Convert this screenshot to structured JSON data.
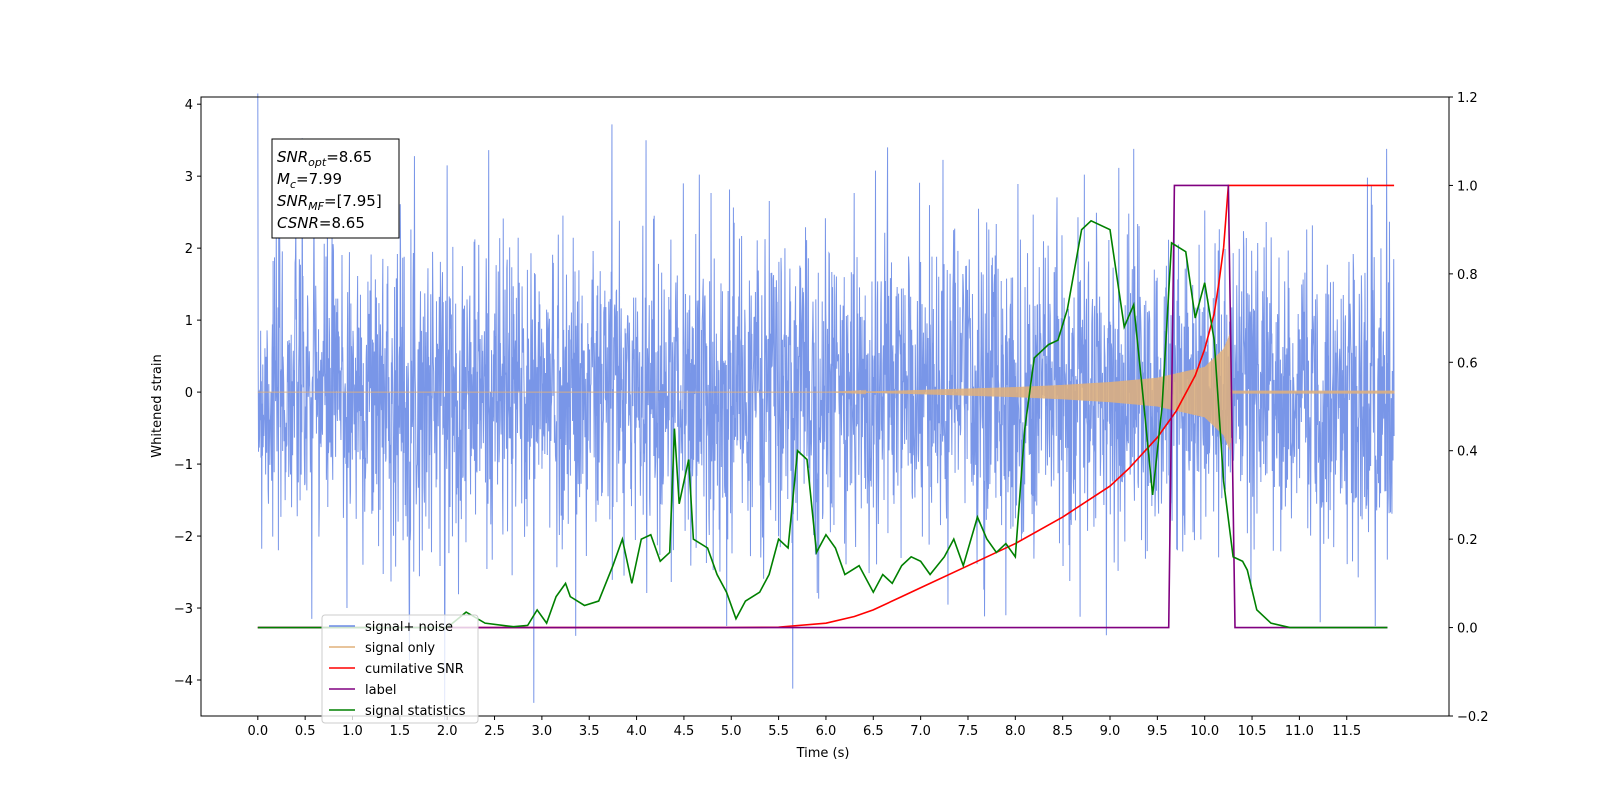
{
  "chart_data": {
    "type": "line",
    "xlabel": "Time (s)",
    "ylabel_left": "Whitened strain",
    "ylabel_right": "",
    "xlim": [
      -0.6,
      12.58
    ],
    "ylim_left": [
      -4.5,
      4.1
    ],
    "ylim_right": [
      -0.2,
      1.2
    ],
    "x_ticks": [
      0.0,
      0.5,
      1.0,
      1.5,
      2.0,
      2.5,
      3.0,
      3.5,
      4.0,
      4.5,
      5.0,
      5.5,
      6.0,
      6.5,
      7.0,
      7.5,
      8.0,
      8.5,
      9.0,
      9.5,
      10.0,
      10.5,
      11.0,
      11.5
    ],
    "x_tick_labels": [
      "0.0",
      "0.5",
      "1.0",
      "1.5",
      "2.0",
      "2.5",
      "3.0",
      "3.5",
      "4.0",
      "4.5",
      "5.0",
      "5.5",
      "6.0",
      "6.5",
      "7.0",
      "7.5",
      "8.0",
      "8.5",
      "9.0",
      "9.5",
      "10.0",
      "10.5",
      "11.0",
      "11.5"
    ],
    "y_left_ticks": [
      4,
      3,
      2,
      1,
      0,
      -1,
      -2,
      -3,
      -4
    ],
    "y_left_tick_labels": [
      "4",
      "3",
      "2",
      "1",
      "0",
      "−1",
      "−2",
      "−3",
      "−4"
    ],
    "y_right_ticks": [
      1.2,
      1.0,
      0.8,
      0.6,
      0.4,
      0.2,
      0.0,
      -0.2
    ],
    "y_right_tick_labels": [
      "1.2",
      "1.0",
      "0.8",
      "0.6",
      "0.4",
      "0.2",
      "0.0",
      "−0.2"
    ],
    "grid": false,
    "legend_position": "lower-left",
    "annotation": {
      "lines": [
        {
          "sym": "SNR",
          "sub": "opt",
          "rest": "=8.65"
        },
        {
          "sym": "M",
          "sub": "c",
          "rest": "=7.99"
        },
        {
          "sym": "SNR",
          "sub": "MF",
          "rest": "=[7.95]"
        },
        {
          "sym": "CSNR",
          "sub": "",
          "rest": "=8.65"
        }
      ]
    },
    "series": [
      {
        "name": "signal+ noise",
        "axis": "left",
        "color": "#6a8be6",
        "kind": "noise",
        "x_range": [
          0.0,
          12.0
        ],
        "envelope_typical": 1.3,
        "notable_peaks": [
          {
            "x": 3.74,
            "y": 3.72
          },
          {
            "x": 4.1,
            "y": 3.5
          },
          {
            "x": 2.0,
            "y": 3.15
          },
          {
            "x": 6.65,
            "y": 3.4
          },
          {
            "x": 9.25,
            "y": 3.38
          },
          {
            "x": 11.92,
            "y": 3.38
          },
          {
            "x": 5.65,
            "y": -4.12
          },
          {
            "x": 0.57,
            "y": -3.15
          },
          {
            "x": 0.94,
            "y": -3.0
          },
          {
            "x": 4.95,
            "y": -3.25
          },
          {
            "x": 7.9,
            "y": -3.1
          },
          {
            "x": 11.8,
            "y": -3.25
          }
        ]
      },
      {
        "name": "signal only",
        "axis": "left",
        "color": "#e0b07a",
        "kind": "chirp",
        "x_range": [
          0.0,
          12.0
        ],
        "amplitude_points": [
          [
            0.0,
            0.0
          ],
          [
            6.0,
            0.0
          ],
          [
            6.5,
            0.01
          ],
          [
            7.0,
            0.03
          ],
          [
            7.5,
            0.05
          ],
          [
            8.0,
            0.07
          ],
          [
            8.5,
            0.1
          ],
          [
            9.0,
            0.14
          ],
          [
            9.5,
            0.2
          ],
          [
            10.0,
            0.35
          ],
          [
            10.2,
            0.6
          ],
          [
            10.27,
            0.82
          ],
          [
            10.29,
            0.02
          ],
          [
            12.0,
            0.02
          ]
        ]
      },
      {
        "name": "cumilative SNR",
        "axis": "right",
        "color": "#ff0000",
        "points": [
          [
            0.0,
            0.0
          ],
          [
            5.0,
            0.0
          ],
          [
            5.5,
            0.001
          ],
          [
            6.0,
            0.01
          ],
          [
            6.3,
            0.025
          ],
          [
            6.5,
            0.04
          ],
          [
            6.8,
            0.07
          ],
          [
            7.0,
            0.09
          ],
          [
            7.5,
            0.14
          ],
          [
            8.0,
            0.19
          ],
          [
            8.5,
            0.25
          ],
          [
            9.0,
            0.32
          ],
          [
            9.2,
            0.36
          ],
          [
            9.5,
            0.43
          ],
          [
            9.7,
            0.49
          ],
          [
            9.9,
            0.57
          ],
          [
            10.0,
            0.63
          ],
          [
            10.1,
            0.71
          ],
          [
            10.15,
            0.78
          ],
          [
            10.2,
            0.86
          ],
          [
            10.25,
            1.0
          ],
          [
            12.0,
            1.0
          ]
        ]
      },
      {
        "name": "label",
        "axis": "right",
        "color": "#800080",
        "points": [
          [
            0.0,
            0.0
          ],
          [
            9.62,
            0.0
          ],
          [
            9.68,
            1.0
          ],
          [
            10.25,
            1.0
          ],
          [
            10.32,
            0.0
          ],
          [
            11.93,
            0.0
          ]
        ]
      },
      {
        "name": "signal statistics",
        "axis": "right",
        "color": "#008000",
        "points": [
          [
            0.0,
            0.0
          ],
          [
            2.0,
            0.0
          ],
          [
            2.2,
            0.035
          ],
          [
            2.4,
            0.01
          ],
          [
            2.7,
            0.002
          ],
          [
            2.85,
            0.005
          ],
          [
            2.95,
            0.04
          ],
          [
            3.05,
            0.01
          ],
          [
            3.15,
            0.07
          ],
          [
            3.25,
            0.1
          ],
          [
            3.3,
            0.07
          ],
          [
            3.45,
            0.05
          ],
          [
            3.6,
            0.06
          ],
          [
            3.75,
            0.14
          ],
          [
            3.85,
            0.2
          ],
          [
            3.95,
            0.1
          ],
          [
            4.05,
            0.2
          ],
          [
            4.15,
            0.21
          ],
          [
            4.25,
            0.15
          ],
          [
            4.35,
            0.17
          ],
          [
            4.4,
            0.45
          ],
          [
            4.45,
            0.28
          ],
          [
            4.55,
            0.38
          ],
          [
            4.6,
            0.2
          ],
          [
            4.75,
            0.18
          ],
          [
            4.85,
            0.12
          ],
          [
            4.95,
            0.08
          ],
          [
            5.05,
            0.02
          ],
          [
            5.15,
            0.06
          ],
          [
            5.3,
            0.08
          ],
          [
            5.4,
            0.12
          ],
          [
            5.5,
            0.2
          ],
          [
            5.6,
            0.18
          ],
          [
            5.7,
            0.4
          ],
          [
            5.8,
            0.38
          ],
          [
            5.9,
            0.17
          ],
          [
            6.0,
            0.21
          ],
          [
            6.1,
            0.18
          ],
          [
            6.2,
            0.12
          ],
          [
            6.35,
            0.14
          ],
          [
            6.5,
            0.08
          ],
          [
            6.6,
            0.12
          ],
          [
            6.7,
            0.1
          ],
          [
            6.8,
            0.14
          ],
          [
            6.9,
            0.16
          ],
          [
            7.0,
            0.15
          ],
          [
            7.1,
            0.12
          ],
          [
            7.25,
            0.16
          ],
          [
            7.35,
            0.2
          ],
          [
            7.45,
            0.14
          ],
          [
            7.6,
            0.25
          ],
          [
            7.7,
            0.2
          ],
          [
            7.8,
            0.17
          ],
          [
            7.9,
            0.19
          ],
          [
            8.0,
            0.16
          ],
          [
            8.1,
            0.45
          ],
          [
            8.2,
            0.61
          ],
          [
            8.35,
            0.64
          ],
          [
            8.45,
            0.65
          ],
          [
            8.55,
            0.72
          ],
          [
            8.7,
            0.9
          ],
          [
            8.8,
            0.92
          ],
          [
            9.0,
            0.9
          ],
          [
            9.15,
            0.68
          ],
          [
            9.25,
            0.73
          ],
          [
            9.35,
            0.52
          ],
          [
            9.45,
            0.3
          ],
          [
            9.55,
            0.5
          ],
          [
            9.65,
            0.87
          ],
          [
            9.8,
            0.85
          ],
          [
            9.9,
            0.7
          ],
          [
            10.0,
            0.78
          ],
          [
            10.1,
            0.65
          ],
          [
            10.2,
            0.33
          ],
          [
            10.3,
            0.16
          ],
          [
            10.4,
            0.15
          ],
          [
            10.45,
            0.13
          ],
          [
            10.55,
            0.04
          ],
          [
            10.7,
            0.01
          ],
          [
            10.9,
            0.0
          ],
          [
            11.93,
            0.0
          ]
        ]
      }
    ],
    "legend": [
      "signal+ noise",
      "signal only",
      "cumilative SNR",
      "label",
      "signal statistics"
    ]
  }
}
